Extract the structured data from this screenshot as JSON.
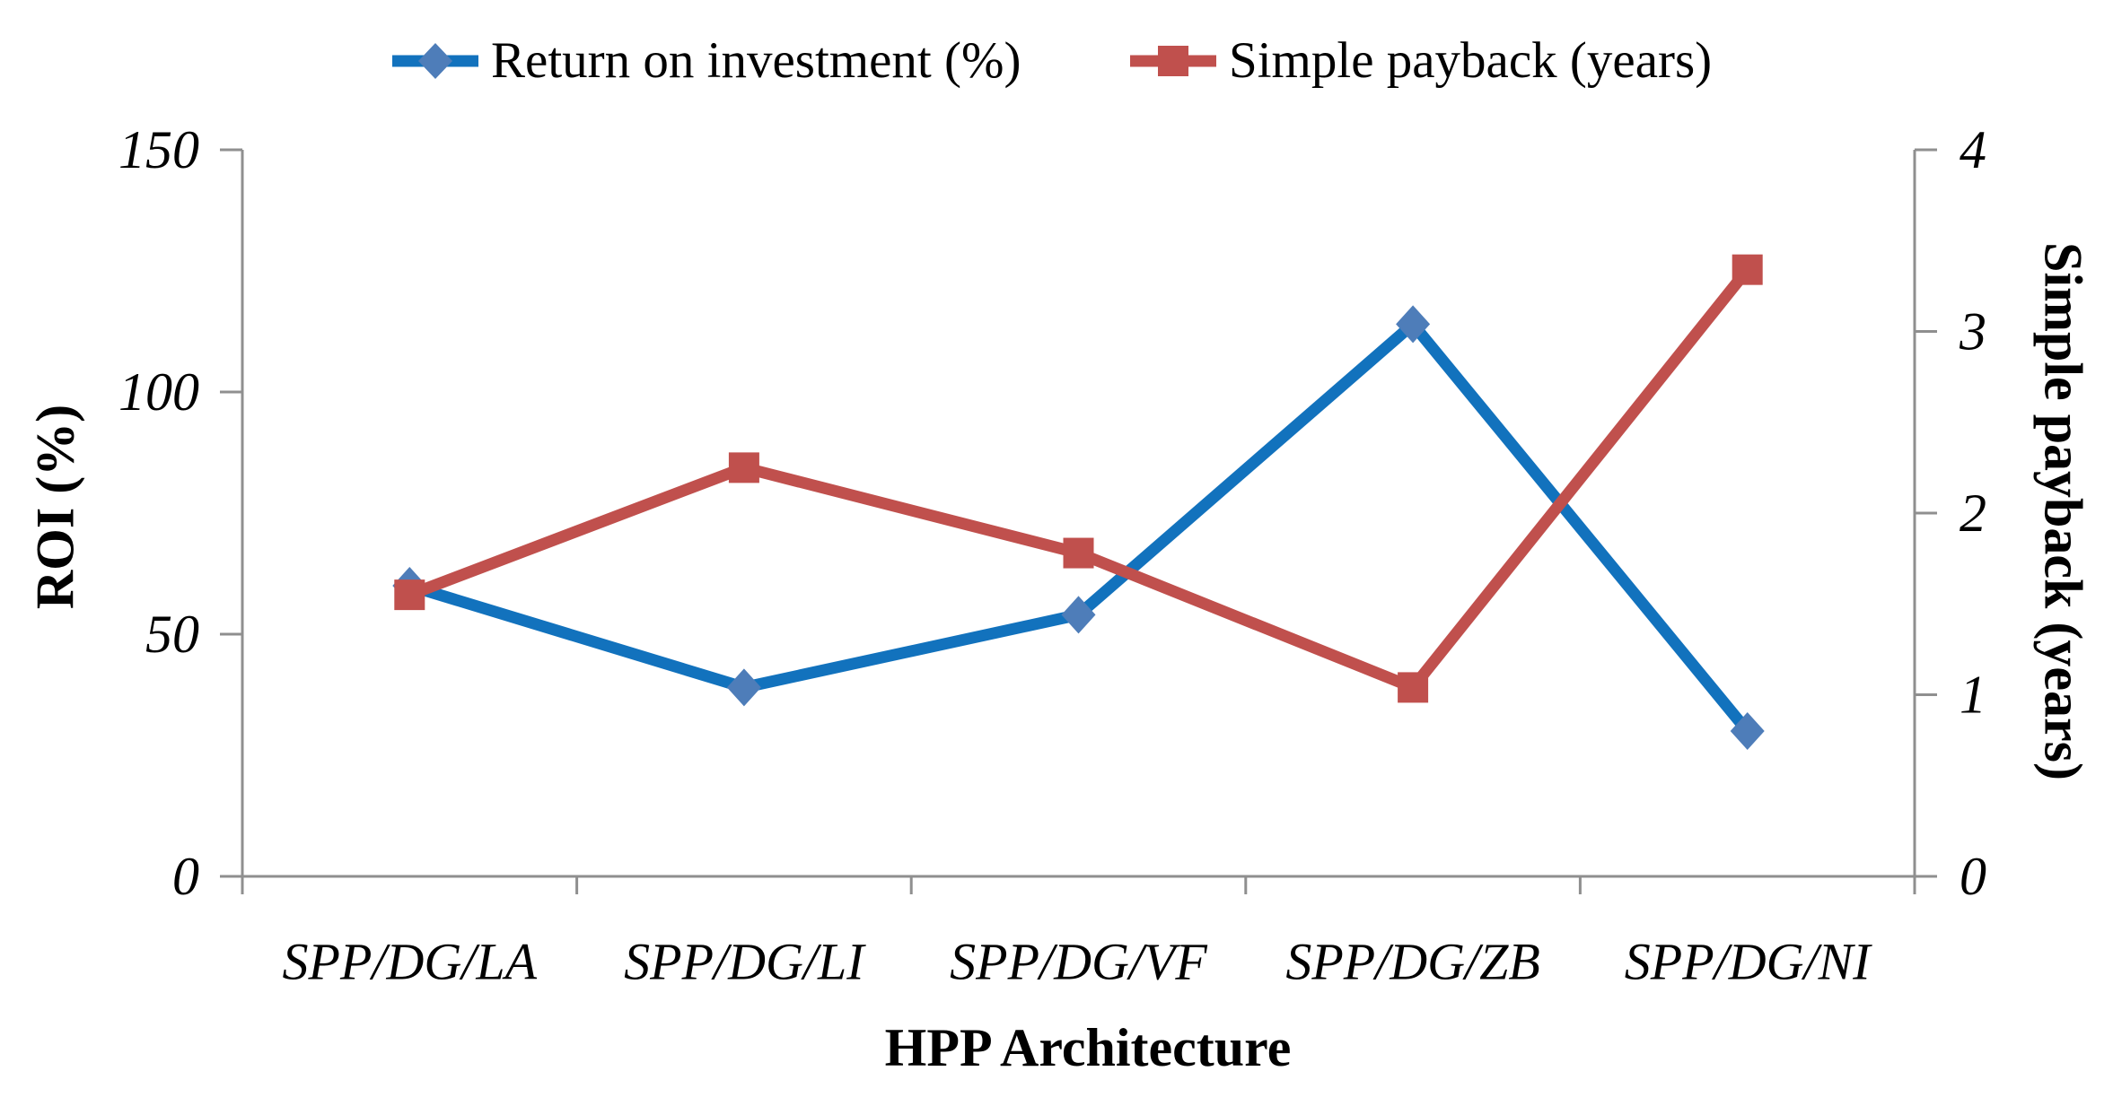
{
  "chart_data": {
    "type": "line",
    "categories": [
      "SPP/DG/LA",
      "SPP/DG/LI",
      "SPP/DG/VF",
      "SPP/DG/ZB",
      "SPP/DG/NI"
    ],
    "series": [
      {
        "name": "Return on investment (%)",
        "axis": "left",
        "marker": "diamond",
        "line_color": "#1272BD",
        "marker_color": "#4E7DB9",
        "values": [
          60,
          39,
          54,
          114,
          30
        ]
      },
      {
        "name": "Simple payback (years)",
        "axis": "right",
        "marker": "square",
        "line_color": "#C0504D",
        "marker_color": "#C0504D",
        "values": [
          1.55,
          2.25,
          1.78,
          1.04,
          3.34
        ]
      }
    ],
    "x_axis": {
      "label": "HPP Architecture"
    },
    "left_axis": {
      "label": "ROI (%)",
      "min": 0,
      "max": 150,
      "ticks": [
        0,
        50,
        100,
        150
      ]
    },
    "right_axis": {
      "label": "Simple payback (years)",
      "min": 0,
      "max": 4,
      "ticks": [
        0,
        1,
        2,
        3,
        4
      ]
    },
    "legend_position": "top",
    "grid": false,
    "axis_color": "#8F8F8F",
    "text_color": "#000000"
  }
}
